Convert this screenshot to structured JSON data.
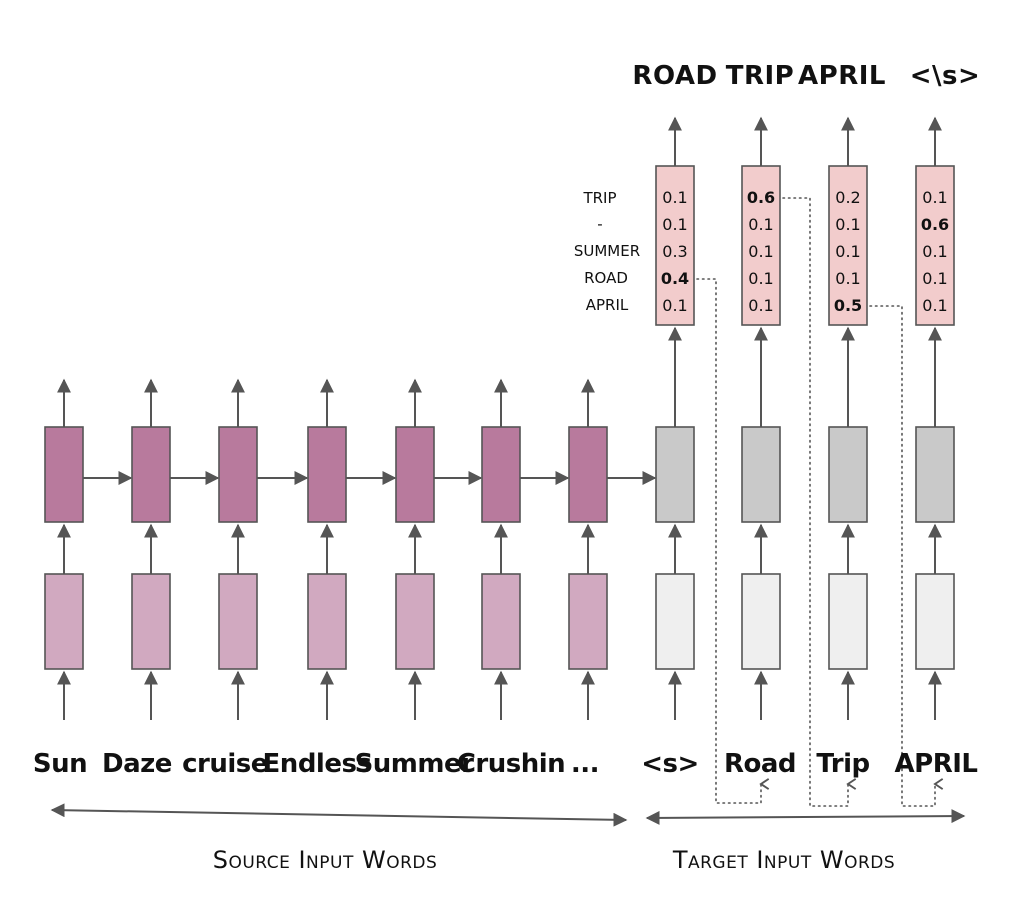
{
  "colors": {
    "encoder_state": "#b87a9d",
    "encoder_embedding": "#d1a9c0",
    "decoder_state": "#c9c9c9",
    "decoder_embedding": "#efefef",
    "softmax": "#f2cccc",
    "arrow": "#555555",
    "text": "#111111"
  },
  "source_words": [
    "Sun",
    "Daze",
    "cruise",
    "Endless",
    "Summer",
    "Crushin",
    "..."
  ],
  "target_input_words": [
    "<s>",
    "Road",
    "Trip",
    "APRIL"
  ],
  "output_words": [
    "ROAD",
    "TRIP",
    "APRIL",
    "<\\s>"
  ],
  "vocabulary": [
    "TRIP",
    "-",
    "SUMMER",
    "ROAD",
    "APRIL"
  ],
  "probabilities": [
    [
      "0.1",
      "0.1",
      "0.3",
      "0.4",
      "0.1"
    ],
    [
      "0.6",
      "0.1",
      "0.1",
      "0.1",
      "0.1"
    ],
    [
      "0.2",
      "0.1",
      "0.1",
      "0.1",
      "0.5"
    ],
    [
      "0.1",
      "0.6",
      "0.1",
      "0.1",
      "0.1"
    ]
  ],
  "highlighted_index": [
    3,
    0,
    4,
    1
  ],
  "captions": {
    "source": "Source Input Words",
    "target": "Target Input Words"
  }
}
